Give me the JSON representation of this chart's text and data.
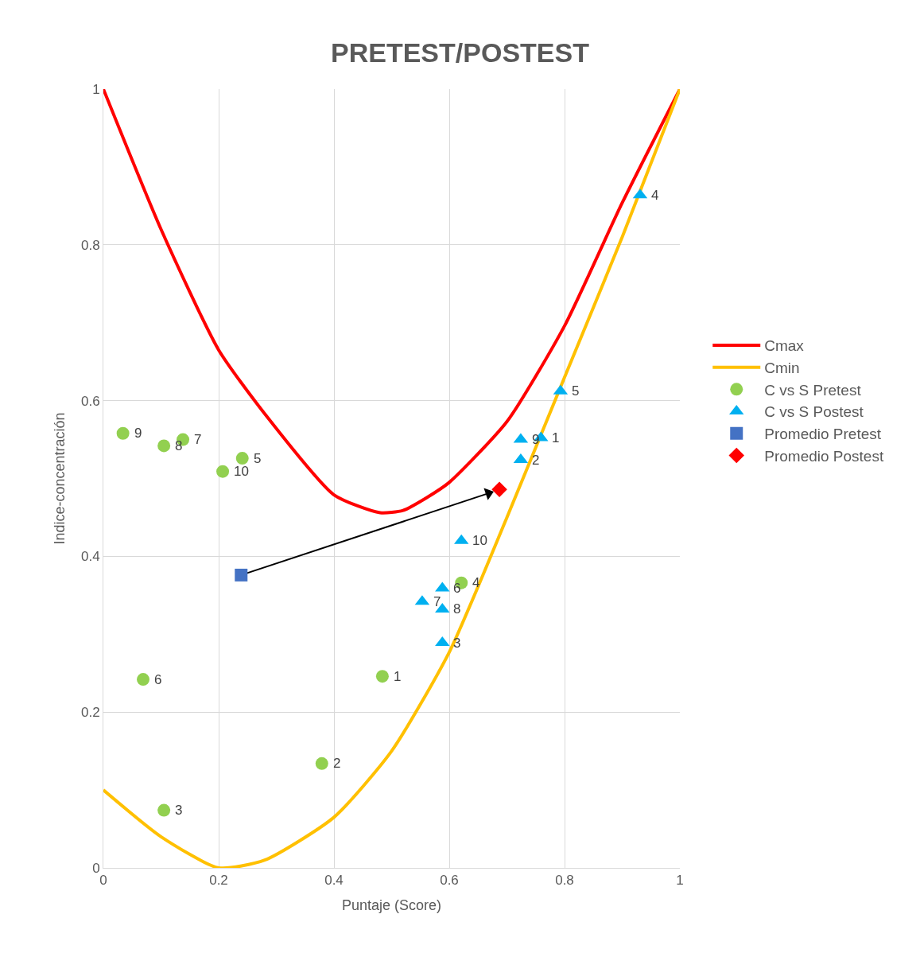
{
  "chart_data": {
    "type": "scatter",
    "title": "PRETEST/POSTEST",
    "xlabel": "Puntaje (Score)",
    "ylabel": "Indice-concentración",
    "xlim": [
      0,
      1
    ],
    "ylim": [
      0,
      1
    ],
    "xticks": [
      0,
      0.2,
      0.4,
      0.6,
      0.8,
      1
    ],
    "yticks": [
      0,
      0.2,
      0.4,
      0.6,
      0.8,
      1
    ],
    "grid": true,
    "legend": "right",
    "series": [
      {
        "name": "Cmax",
        "type": "line",
        "color": "#ff0000",
        "marker": "none",
        "x": [
          0,
          0.1,
          0.2,
          0.28,
          0.4,
          0.48,
          0.52,
          0.56,
          0.6,
          0.7,
          0.8,
          0.9,
          1
        ],
        "values": [
          1,
          0.82,
          0.665,
          0.583,
          0.479,
          0.456,
          0.459,
          0.475,
          0.495,
          0.573,
          0.696,
          0.854,
          1
        ]
      },
      {
        "name": "Cmin",
        "type": "line",
        "color": "#ffc000",
        "marker": "none",
        "x": [
          0,
          0.1,
          0.2,
          0.28,
          0.4,
          0.5,
          0.6,
          0.7,
          0.8,
          0.9,
          1
        ],
        "values": [
          0.1,
          0.04,
          0,
          0.01,
          0.065,
          0.15,
          0.277,
          0.45,
          0.63,
          0.81,
          1
        ]
      },
      {
        "name": "C vs S Pretest",
        "color": "#92d050",
        "marker": "circle",
        "x": [
          0.484,
          0.379,
          0.105,
          0.621,
          0.241,
          0.069,
          0.138,
          0.105,
          0.034,
          0.207
        ],
        "values": [
          0.246,
          0.134,
          0.074,
          0.366,
          0.526,
          0.242,
          0.55,
          0.542,
          0.558,
          0.509
        ]
      },
      {
        "name": "C vs S Postest",
        "color": "#00b0f0",
        "marker": "triangle",
        "x": [
          0.759,
          0.724,
          0.588,
          0.931,
          0.793,
          0.588,
          0.553,
          0.588,
          0.724,
          0.621
        ],
        "values": [
          0.552,
          0.524,
          0.289,
          0.864,
          0.612,
          0.359,
          0.342,
          0.332,
          0.55,
          0.42
        ]
      },
      {
        "type": "line",
        "color": "#000000",
        "marker": "triangle",
        "x": [
          0.239,
          0.668
        ],
        "values": [
          0.376,
          0.481
        ]
      },
      {
        "name": "Promedio Pretest",
        "color": "#4472c4",
        "marker": "square",
        "x": [
          0.239
        ],
        "values": [
          0.376
        ]
      },
      {
        "name": "Promedio Postest",
        "color": "#ff0000",
        "marker": "diamond",
        "x": [
          0.687
        ],
        "values": [
          0.486
        ]
      }
    ],
    "annotations": [
      {
        "text": "1",
        "x": 0.484,
        "y": 0.246
      },
      {
        "text": "2",
        "x": 0.379,
        "y": 0.134
      },
      {
        "text": "3",
        "x": 0.105,
        "y": 0.074
      },
      {
        "text": "4",
        "x": 0.621,
        "y": 0.366
      },
      {
        "text": "5",
        "x": 0.241,
        "y": 0.526
      },
      {
        "text": "6",
        "x": 0.069,
        "y": 0.242
      },
      {
        "text": "7",
        "x": 0.138,
        "y": 0.55
      },
      {
        "text": "8",
        "x": 0.105,
        "y": 0.542
      },
      {
        "text": "9",
        "x": 0.034,
        "y": 0.558
      },
      {
        "text": "10",
        "x": 0.207,
        "y": 0.509
      },
      {
        "text": "1",
        "x": 0.759,
        "y": 0.552
      },
      {
        "text": "2",
        "x": 0.724,
        "y": 0.524
      },
      {
        "text": "3",
        "x": 0.588,
        "y": 0.289
      },
      {
        "text": "4",
        "x": 0.931,
        "y": 0.864
      },
      {
        "text": "5",
        "x": 0.793,
        "y": 0.612
      },
      {
        "text": "6",
        "x": 0.588,
        "y": 0.359
      },
      {
        "text": "7",
        "x": 0.553,
        "y": 0.342
      },
      {
        "text": "8",
        "x": 0.588,
        "y": 0.332
      },
      {
        "text": "9",
        "x": 0.724,
        "y": 0.55
      },
      {
        "text": "10",
        "x": 0.621,
        "y": 0.42
      }
    ]
  }
}
